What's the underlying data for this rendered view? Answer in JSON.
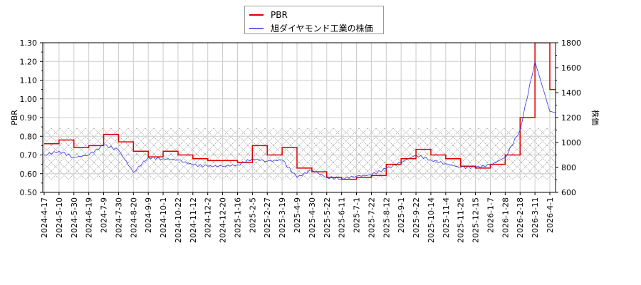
{
  "legend": {
    "items": [
      {
        "label": "PBR",
        "color": "#dd0000"
      },
      {
        "label": "旭ダイヤモンド工業の株価",
        "color": "#3333dd"
      }
    ]
  },
  "axes": {
    "left_label": "PBR",
    "right_label": "株価",
    "left_ticks": [
      "1.30",
      "1.20",
      "1.10",
      "1.00",
      "0.90",
      "0.80",
      "0.70",
      "0.60",
      "0.50"
    ],
    "right_ticks": [
      "1800",
      "1600",
      "1400",
      "1200",
      "1000",
      "800",
      "600"
    ],
    "x_ticks": [
      "2024-4-17",
      "2024-5-10",
      "2024-5-30",
      "2024-6-19",
      "2024-7-9",
      "2024-7-30",
      "2024-8-20",
      "2024-9-9",
      "2024-10-1",
      "2024-10-22",
      "2024-11-12",
      "2024-12-2",
      "2024-12-20",
      "2025-1-16",
      "2025-2-5",
      "2025-2-27",
      "2025-3-19",
      "2025-4-9",
      "2025-4-30",
      "2025-5-22",
      "2025-6-11",
      "2025-7-1",
      "2025-7-22",
      "2025-8-12",
      "2025-9-1",
      "2025-9-22",
      "2025-10-14",
      "2025-11-4",
      "2025-11-25",
      "2025-12-15",
      "2026-1-7",
      "2026-1-28",
      "2026-2-18",
      "2026-3-11",
      "2026-4-1"
    ]
  },
  "chart_data": {
    "type": "line",
    "title": "",
    "xlabel": "",
    "ylabel": "PBR",
    "y2label": "株価",
    "ylim": [
      0.5,
      1.3
    ],
    "y2lim": [
      600,
      1800
    ],
    "grid": true,
    "legend_position": "top-center",
    "shaded_band": {
      "axis": "PBR",
      "from": 0.57,
      "to": 0.84,
      "style": "cross-hatch"
    },
    "categories": [
      "2024-4-17",
      "2024-5-10",
      "2024-5-30",
      "2024-6-19",
      "2024-7-9",
      "2024-7-30",
      "2024-8-20",
      "2024-9-9",
      "2024-10-1",
      "2024-10-22",
      "2024-11-12",
      "2024-12-2",
      "2024-12-20",
      "2025-1-16",
      "2025-2-5",
      "2025-2-27",
      "2025-3-19",
      "2025-4-9",
      "2025-4-30",
      "2025-5-22",
      "2025-6-11",
      "2025-7-1",
      "2025-7-22",
      "2025-8-12",
      "2025-9-1",
      "2025-9-22",
      "2025-10-14",
      "2025-11-4",
      "2025-11-25",
      "2025-12-15",
      "2026-1-7",
      "2026-1-28",
      "2026-2-18",
      "2026-3-11",
      "2026-4-1"
    ],
    "series": [
      {
        "name": "PBR",
        "axis": "left",
        "color": "#dd0000",
        "values": [
          0.76,
          0.78,
          0.74,
          0.75,
          0.81,
          0.77,
          0.72,
          0.69,
          0.72,
          0.7,
          0.68,
          0.67,
          0.67,
          0.66,
          0.75,
          0.7,
          0.74,
          0.63,
          0.61,
          0.58,
          0.57,
          0.58,
          0.59,
          0.65,
          0.68,
          0.73,
          0.7,
          0.68,
          0.64,
          0.63,
          0.65,
          0.7,
          0.9,
          1.3,
          1.05
        ]
      },
      {
        "name": "旭ダイヤモンド工業の株価",
        "axis": "right",
        "color": "#3333dd",
        "values": [
          900,
          930,
          880,
          900,
          980,
          940,
          760,
          880,
          870,
          860,
          820,
          810,
          810,
          820,
          870,
          850,
          860,
          720,
          780,
          720,
          710,
          730,
          740,
          790,
          840,
          900,
          860,
          830,
          800,
          800,
          820,
          880,
          1100,
          1650,
          1250
        ]
      }
    ]
  }
}
